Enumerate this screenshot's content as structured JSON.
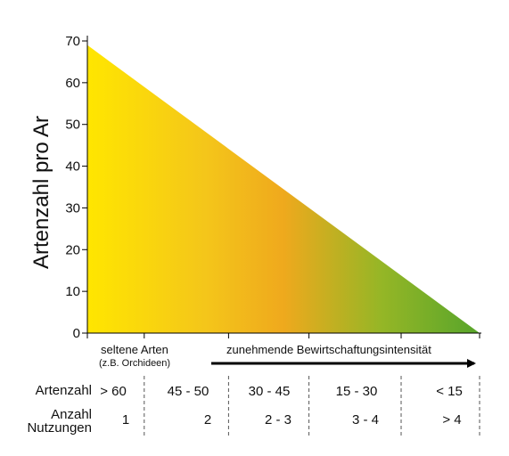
{
  "chart_data": {
    "type": "area",
    "ylabel": "Artenzahl pro Ar",
    "xlabel": "",
    "title": "",
    "ylim": [
      0,
      70
    ],
    "yticks": [
      0,
      10,
      20,
      30,
      40,
      50,
      60,
      70
    ],
    "x": [
      0,
      1
    ],
    "series": [
      {
        "values": [
          69,
          0
        ]
      }
    ],
    "gradient_colors": [
      "#ffe600",
      "#f2c218",
      "#efa91d",
      "#92b525",
      "#58a62a"
    ],
    "annotations": {
      "rare_species": "seltene Arten",
      "rare_species_example": "(z.B. Orchideen)",
      "arrow_label": "zunehmende Bewirtschaftungsintensität"
    },
    "table": {
      "row_labels": [
        "Artenzahl",
        "Anzahl Nutzungen"
      ],
      "row_label_lines": [
        [
          "Artenzahl"
        ],
        [
          "Anzahl",
          "Nutzungen"
        ]
      ],
      "artenzahl": [
        "> 60",
        "45 - 50",
        "30 - 45",
        "15 - 30",
        "< 15"
      ],
      "nutzungen": [
        "1",
        "2",
        "2 - 3",
        "3 - 4",
        "> 4"
      ]
    }
  }
}
